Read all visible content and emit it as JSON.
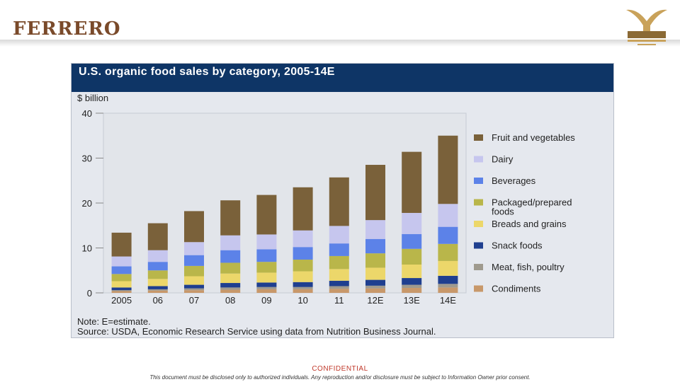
{
  "header": {
    "brand": "FERRERO"
  },
  "footer": {
    "confidential": "CONFIDENTIAL",
    "notice": "This document must be disclosed only to authorized individuals. Any reproduction and/or disclosure must be subject to Information Owner prior consent."
  },
  "chart_data": {
    "type": "bar",
    "stacked": true,
    "title": "U.S. organic food sales by category, 2005-14E",
    "ylabel": "$ billion",
    "ylim": [
      0,
      40
    ],
    "yticks": [
      0,
      10,
      20,
      30,
      40
    ],
    "categories": [
      "2005",
      "06",
      "07",
      "08",
      "09",
      "10",
      "11",
      "12E",
      "13E",
      "14E"
    ],
    "legend_position": "right",
    "grid": false,
    "series": [
      {
        "name": "Condiments",
        "color": "#c8986a",
        "values": [
          0.4,
          0.5,
          0.6,
          0.7,
          0.8,
          0.8,
          0.9,
          1.0,
          1.1,
          1.2
        ]
      },
      {
        "name": "Meat, fish, poultry",
        "color": "#9f9a8e",
        "values": [
          0.2,
          0.3,
          0.4,
          0.5,
          0.5,
          0.5,
          0.6,
          0.6,
          0.7,
          0.8
        ]
      },
      {
        "name": "Snack foods",
        "color": "#1f3f8f",
        "values": [
          0.6,
          0.7,
          0.8,
          1.0,
          1.0,
          1.1,
          1.2,
          1.3,
          1.5,
          1.8
        ]
      },
      {
        "name": "Breads and grains",
        "color": "#ecd76a",
        "values": [
          1.4,
          1.6,
          1.9,
          2.1,
          2.2,
          2.4,
          2.6,
          2.7,
          3.0,
          3.3
        ]
      },
      {
        "name": "Packaged/prepared foods",
        "color": "#b9b64a",
        "values": [
          1.6,
          1.9,
          2.3,
          2.4,
          2.4,
          2.6,
          2.9,
          3.2,
          3.5,
          3.8
        ]
      },
      {
        "name": "Beverages",
        "color": "#5c82e8",
        "values": [
          1.7,
          1.9,
          2.4,
          2.8,
          2.8,
          2.8,
          2.8,
          3.2,
          3.3,
          3.8
        ]
      },
      {
        "name": "Dairy",
        "color": "#c6c6ee",
        "values": [
          2.2,
          2.6,
          2.9,
          3.3,
          3.3,
          3.7,
          3.9,
          4.2,
          4.7,
          5.1
        ]
      },
      {
        "name": "Fruit and vegetables",
        "color": "#7a613a",
        "values": [
          5.3,
          6.0,
          6.9,
          7.8,
          8.8,
          9.6,
          10.8,
          12.3,
          13.6,
          15.2
        ]
      }
    ],
    "legend_order": [
      "Fruit and vegetables",
      "Dairy",
      "Beverages",
      "Packaged/prepared foods",
      "Breads and grains",
      "Snack foods",
      "Meat, fish, poultry",
      "Condiments"
    ],
    "notes": [
      "Note: E=estimate.",
      "Source: USDA, Economic Research Service using data from Nutrition Business Journal."
    ]
  }
}
